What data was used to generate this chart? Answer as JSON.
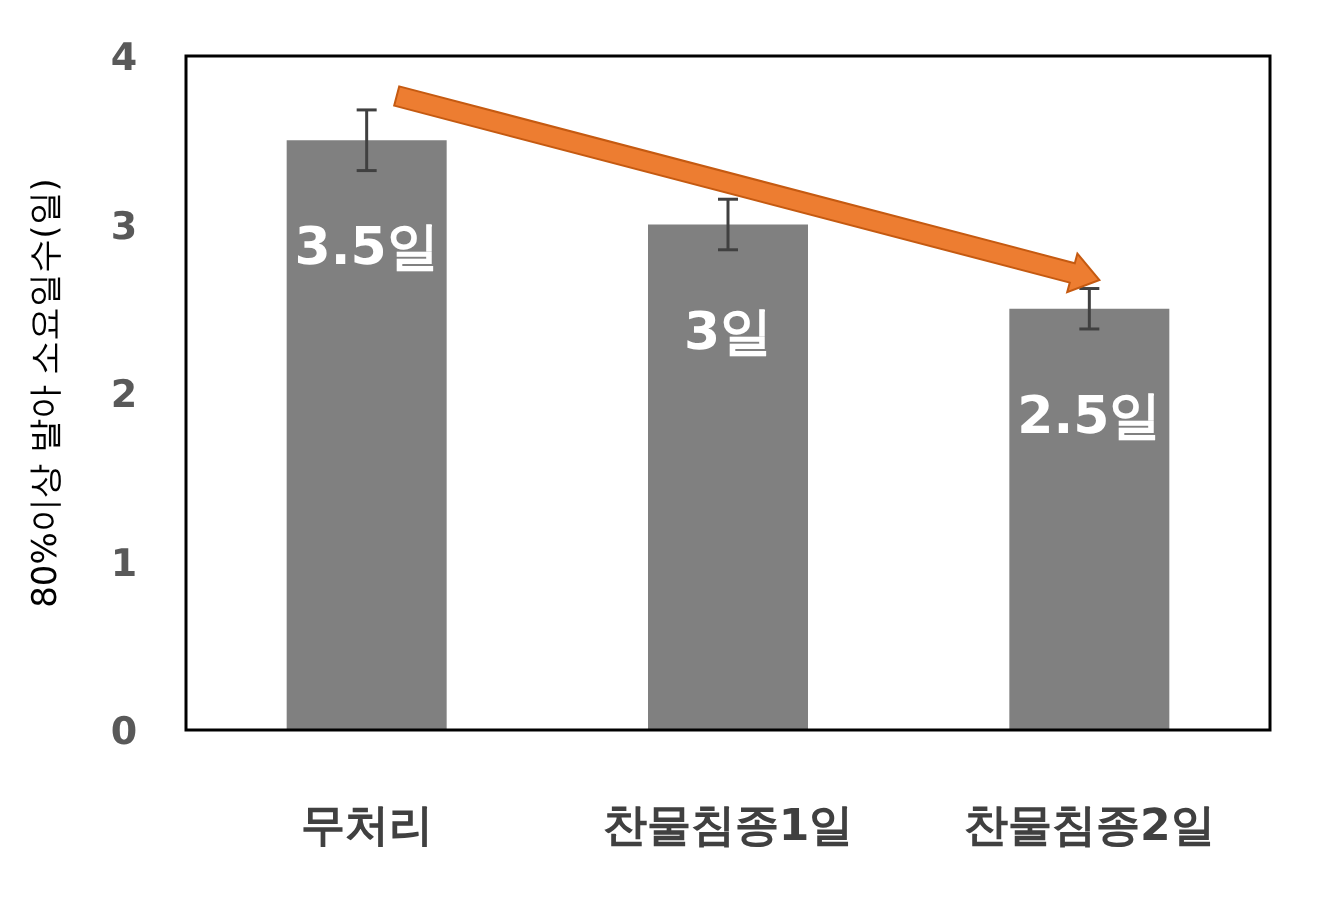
{
  "chart_data": {
    "type": "bar",
    "ylabel": "80%이상 발아 소요일수(일)",
    "categories": [
      "무처리",
      "찬물침종1일",
      "찬물침종2일"
    ],
    "values": [
      3.5,
      3,
      2.5
    ],
    "color": "#808080",
    "errors": [
      0.18,
      0.15,
      0.12
    ],
    "value_labels": [
      "3.5일",
      "3일",
      "2.5일"
    ],
    "ylim": [
      0,
      4
    ],
    "yticks": [
      0,
      1,
      2,
      3,
      4
    ]
  }
}
